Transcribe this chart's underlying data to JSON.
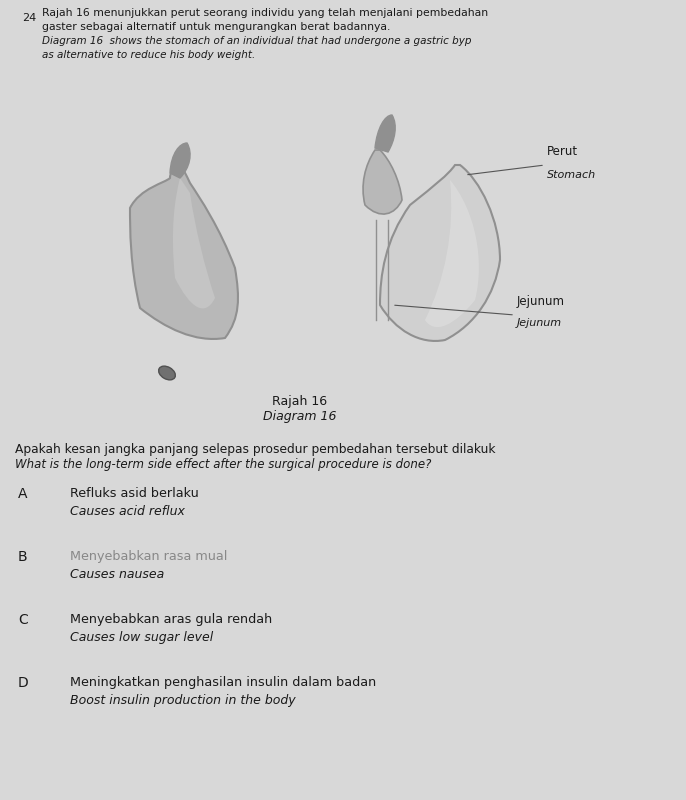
{
  "bg_color": "#d8d8d8",
  "question_number": "24",
  "title_malay": "Rajah 16 menunjukkan perut seorang individu yang telah menjalani pembedahan",
  "title_malay2": "gaster sebagai alternatif untuk mengurangkan berat badannya.",
  "title_english": "Diagram 16  shows the stomach of an individual that had undergone a gastric byp",
  "title_english2": "as alternative to reduce his body weight.",
  "diagram_caption_malay": "Rajah 16",
  "diagram_caption_english": "Diagram 16",
  "label_perut_malay": "Perut",
  "label_perut_english": "Stomach",
  "label_jejunum_malay": "Jejunum",
  "label_jejunum_english": "Jejunum",
  "question_malay": "Apakah kesan jangka panjang selepas prosedur pembedahan tersebut dilakuk",
  "question_english": "What is the long-term side effect after the surgical procedure is done?",
  "options": [
    {
      "letter": "A",
      "malay": "Refluks asid berlaku",
      "english": "Causes acid reflux",
      "strikethrough": false
    },
    {
      "letter": "B",
      "malay": "Menyebabkan rasa mual",
      "english": "Causes nausea",
      "strikethrough": true
    },
    {
      "letter": "C",
      "malay": "Menyebabkan aras gula rendah",
      "english": "Causes low sugar level",
      "strikethrough": false
    },
    {
      "letter": "D",
      "malay": "Meningkatkan penghasilan insulin dalam badan",
      "english": "Boost insulin production in the body",
      "strikethrough": false
    }
  ],
  "text_color": "#1a1a1a",
  "strike_color": "#888888",
  "stomach_gray": "#b8b8b8",
  "stomach_dark": "#909090",
  "stomach_light": "#d0d0d0"
}
